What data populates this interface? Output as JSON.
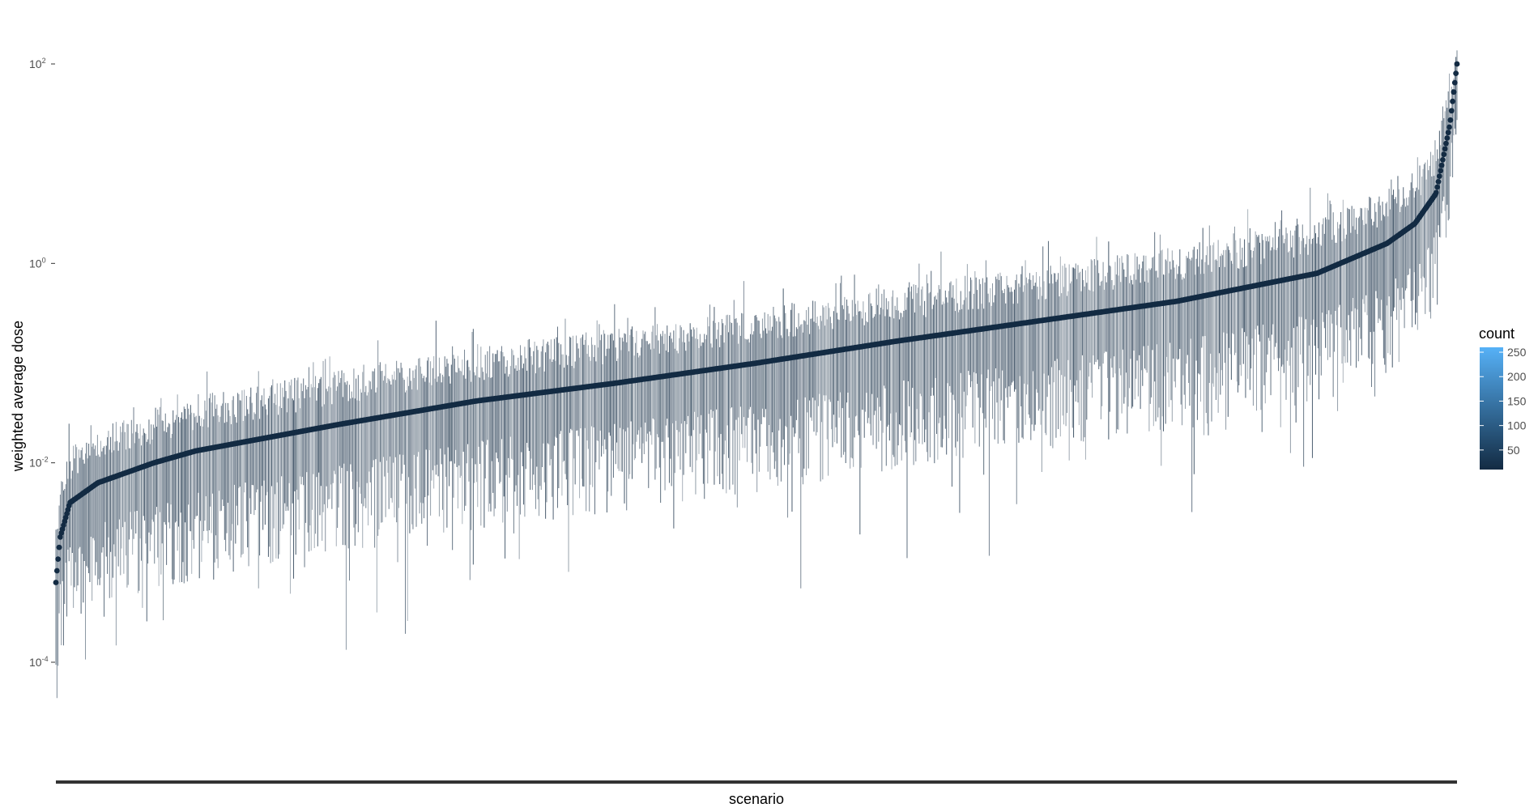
{
  "chart_data": {
    "type": "scatter",
    "subtype": "point-range (sorted mean with vertical min-max ranges), log y-axis",
    "xlabel": "scenario",
    "ylabel": "weighted average dose",
    "x_tick_labels": [],
    "y_scale": "log10",
    "ylim": [
      2e-06,
      300
    ],
    "y_ticks": [
      {
        "value": 100,
        "base": "10",
        "exp": "2"
      },
      {
        "value": 1,
        "base": "10",
        "exp": "0"
      },
      {
        "value": 0.01,
        "base": "10",
        "exp": "-2"
      },
      {
        "value": 0.0001,
        "base": "10",
        "exp": "-4"
      }
    ],
    "n_scenarios": 1280,
    "mean_curve_log10": [
      [
        0.0,
        -3.2
      ],
      [
        0.003,
        -2.75
      ],
      [
        0.01,
        -2.4
      ],
      [
        0.03,
        -2.2
      ],
      [
        0.07,
        -2.0
      ],
      [
        0.1,
        -1.88
      ],
      [
        0.2,
        -1.62
      ],
      [
        0.3,
        -1.38
      ],
      [
        0.4,
        -1.2
      ],
      [
        0.5,
        -1.0
      ],
      [
        0.6,
        -0.78
      ],
      [
        0.7,
        -0.58
      ],
      [
        0.8,
        -0.38
      ],
      [
        0.9,
        -0.1
      ],
      [
        0.95,
        0.2
      ],
      [
        0.97,
        0.4
      ],
      [
        0.985,
        0.7
      ],
      [
        0.995,
        1.4
      ],
      [
        1.0,
        2.0
      ]
    ],
    "range_above_log10": {
      "typical": [
        0.2,
        0.55
      ],
      "max_extent": 0.9
    },
    "range_below_log10": {
      "typical": [
        0.4,
        1.3
      ],
      "max_extent": 2.4
    },
    "grid": false,
    "legend": {
      "title": "count",
      "position": "right",
      "type": "colorbar",
      "labels": [
        "250",
        "200",
        "150",
        "100",
        "50"
      ],
      "values": [
        250,
        200,
        150,
        100,
        50
      ],
      "range": [
        10,
        260
      ],
      "color_low": "#132B43",
      "color_high": "#56B1F7"
    },
    "colors": {
      "point": "#132B43",
      "range_line": "#132B43",
      "axis_line": "#333333",
      "tick_text": "#4d4d4d"
    }
  }
}
